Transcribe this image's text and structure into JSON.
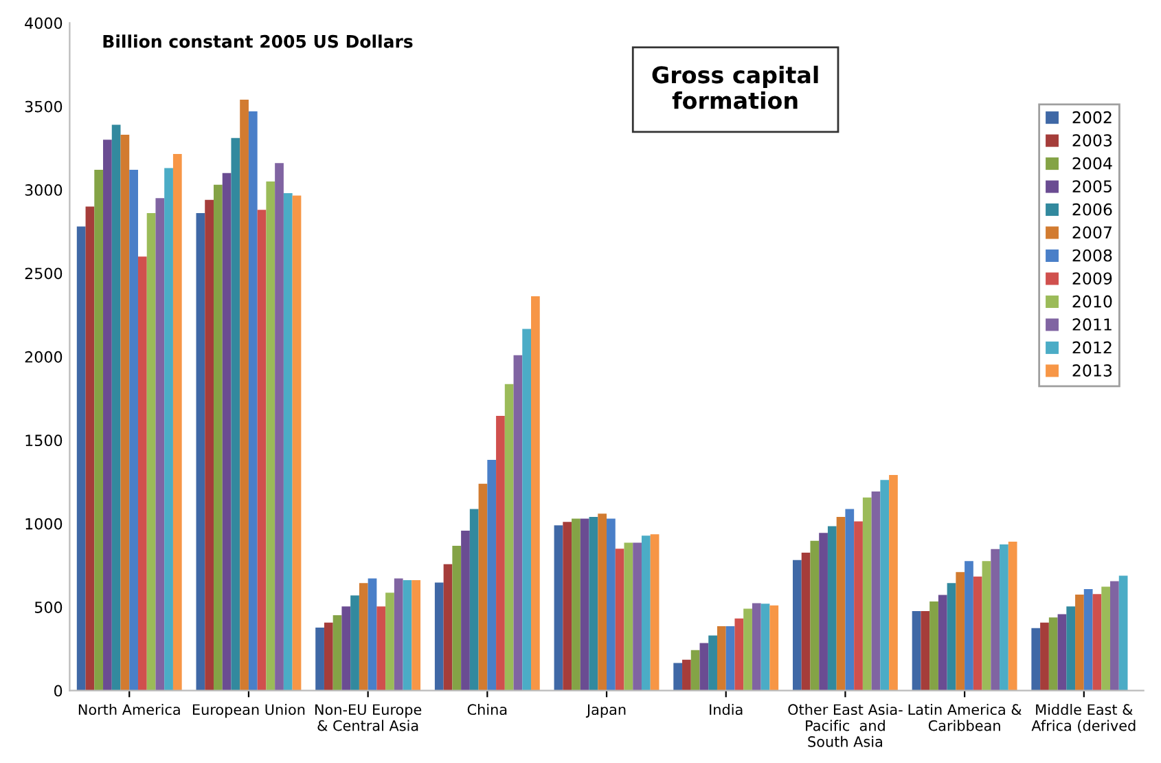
{
  "chart_data": {
    "type": "bar",
    "title": "Gross capital\nformation",
    "annotations": [
      "Billion constant 2005 US Dollars"
    ],
    "categories": [
      "North America",
      "European Union",
      "Non-EU Europe\n& Central Asia",
      "China",
      "Japan",
      "India",
      "Other East Asia-\nPacific  and\nSouth Asia",
      "Latin America &\nCaribbean",
      "Middle East &\nAfrica (derived"
    ],
    "series": [
      {
        "name": "2002",
        "color": "#3f68a6",
        "values": [
          2780,
          2860,
          377,
          647,
          990,
          165,
          782,
          476,
          374
        ]
      },
      {
        "name": "2003",
        "color": "#a53d3a",
        "values": [
          2900,
          2940,
          407,
          757,
          1010,
          184,
          826,
          476,
          407
        ]
      },
      {
        "name": "2004",
        "color": "#84a346",
        "values": [
          3120,
          3030,
          451,
          867,
          1030,
          242,
          897,
          534,
          438
        ]
      },
      {
        "name": "2005",
        "color": "#6a4c92",
        "values": [
          3300,
          3100,
          504,
          958,
          1030,
          284,
          944,
          573,
          457
        ]
      },
      {
        "name": "2006",
        "color": "#32899e",
        "values": [
          3390,
          3310,
          570,
          1087,
          1040,
          330,
          985,
          644,
          504
        ]
      },
      {
        "name": "2007",
        "color": "#d27b30",
        "values": [
          3330,
          3540,
          644,
          1239,
          1060,
          385,
          1040,
          710,
          575
        ]
      },
      {
        "name": "2008",
        "color": "#4a7fc8",
        "values": [
          3120,
          3470,
          672,
          1382,
          1030,
          385,
          1087,
          776,
          608
        ]
      },
      {
        "name": "2009",
        "color": "#d0504d",
        "values": [
          2600,
          2880,
          504,
          1646,
          850,
          432,
          1013,
          683,
          578
        ]
      },
      {
        "name": "2010",
        "color": "#9bbb59",
        "values": [
          2860,
          3050,
          586,
          1836,
          886,
          490,
          1156,
          776,
          622
        ]
      },
      {
        "name": "2011",
        "color": "#8064a2",
        "values": [
          2950,
          3160,
          672,
          2009,
          886,
          523,
          1192,
          848,
          655
        ]
      },
      {
        "name": "2012",
        "color": "#4bacc6",
        "values": [
          3130,
          2980,
          661,
          2166,
          928,
          520,
          1261,
          875,
          688
        ]
      },
      {
        "name": "2013",
        "color": "#f79646",
        "values": [
          3215,
          2965,
          661,
          2362,
          936,
          510,
          1291,
          892,
          null
        ]
      }
    ],
    "ylim": [
      0,
      4000
    ],
    "yticks": [
      0,
      500,
      1000,
      1500,
      2000,
      2500,
      3000,
      3500,
      4000
    ],
    "legend": "top right"
  }
}
